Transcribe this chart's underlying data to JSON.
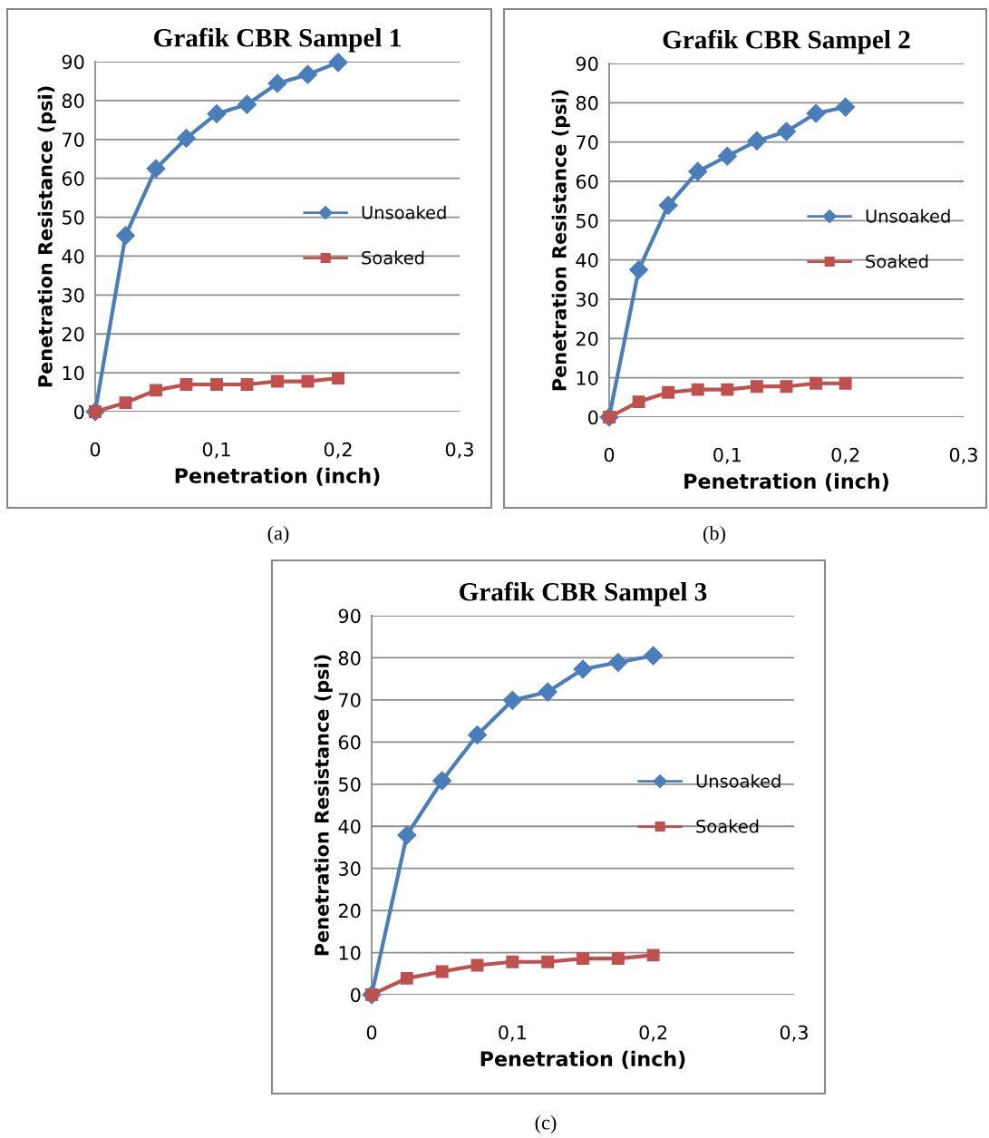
{
  "chart_data": [
    {
      "type": "line",
      "title": "Grafik CBR Sampel 1",
      "xlabel": "Penetration (inch)",
      "ylabel": "Penetration Resistance (psi)",
      "annotations": [
        "(a)"
      ],
      "x": [
        0,
        0.025,
        0.05,
        0.075,
        0.1,
        0.125,
        0.15,
        0.175,
        0.2
      ],
      "series": [
        {
          "name": "Unsoaked",
          "color": "#4a7ebb",
          "marker": "diamond",
          "values": [
            0,
            45.3,
            62.5,
            70.3,
            76.6,
            79,
            84.4,
            86.7,
            89.8
          ]
        },
        {
          "name": "Soaked",
          "color": "#c0504d",
          "marker": "square",
          "values": [
            0,
            2.3,
            5.5,
            7,
            7,
            7,
            7.8,
            7.8,
            8.6
          ]
        }
      ],
      "xlim": [
        0,
        0.3
      ],
      "xticks": [
        0,
        {
          "value": 0.1,
          "label": "0,1"
        },
        {
          "value": 0.2,
          "label": "0,2"
        },
        {
          "value": 0.3,
          "label": "0,3"
        }
      ],
      "ylim": [
        0,
        90
      ],
      "yticks": [
        0,
        10,
        20,
        30,
        40,
        50,
        60,
        70,
        80,
        90
      ],
      "grid": "y",
      "legend": "right"
    },
    {
      "type": "line",
      "title": "Grafik CBR Sampel 2",
      "xlabel": "Penetration (inch)",
      "ylabel": "Penetration Resistance (psi)",
      "annotations": [
        "(b)"
      ],
      "x": [
        0,
        0.025,
        0.05,
        0.075,
        0.1,
        0.125,
        0.15,
        0.175,
        0.2
      ],
      "series": [
        {
          "name": "Unsoaked",
          "color": "#4a7ebb",
          "marker": "diamond",
          "values": [
            0,
            37.5,
            53.9,
            62.5,
            66.4,
            70.3,
            72.7,
            77.3,
            78.9
          ]
        },
        {
          "name": "Soaked",
          "color": "#c0504d",
          "marker": "square",
          "values": [
            0,
            3.9,
            6.3,
            7,
            7,
            7.8,
            7.8,
            8.6,
            8.6
          ]
        }
      ],
      "xlim": [
        0,
        0.3
      ],
      "xticks": [
        0,
        {
          "value": 0.1,
          "label": "0,1"
        },
        {
          "value": 0.2,
          "label": "0,2"
        },
        {
          "value": 0.3,
          "label": "0,3"
        }
      ],
      "ylim": [
        0,
        90
      ],
      "yticks": [
        0,
        10,
        20,
        30,
        40,
        50,
        60,
        70,
        80,
        90
      ],
      "grid": "y",
      "legend": "right"
    },
    {
      "type": "line",
      "title": "Grafik CBR Sampel 3",
      "xlabel": "Penetration (inch)",
      "ylabel": "Penetration Resistance (psi)",
      "annotations": [
        "(c)"
      ],
      "x": [
        0,
        0.025,
        0.05,
        0.075,
        0.1,
        0.125,
        0.15,
        0.175,
        0.2
      ],
      "series": [
        {
          "name": "Unsoaked",
          "color": "#4a7ebb",
          "marker": "diamond",
          "values": [
            0,
            37.9,
            50.8,
            61.7,
            69.9,
            71.9,
            77.3,
            78.9,
            80.5
          ]
        },
        {
          "name": "Soaked",
          "color": "#c0504d",
          "marker": "square",
          "values": [
            0,
            3.9,
            5.5,
            7,
            7.8,
            7.8,
            8.6,
            8.6,
            9.4
          ]
        }
      ],
      "xlim": [
        0,
        0.3
      ],
      "xticks": [
        0,
        {
          "value": 0.1,
          "label": "0,1"
        },
        {
          "value": 0.2,
          "label": "0,2"
        },
        {
          "value": 0.3,
          "label": "0,3"
        }
      ],
      "ylim": [
        0,
        90
      ],
      "yticks": [
        0,
        10,
        20,
        30,
        40,
        50,
        60,
        70,
        80,
        90
      ],
      "grid": "y",
      "legend": "right"
    }
  ]
}
